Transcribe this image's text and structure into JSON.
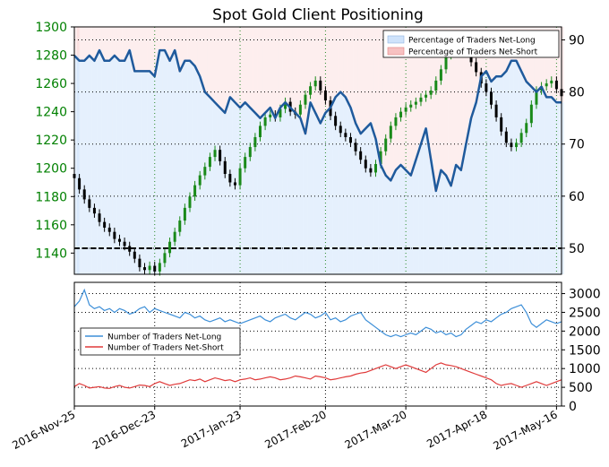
{
  "chart_data": {
    "type": "line",
    "title": "Spot Gold Client Positioning",
    "x_labels": [
      "2016-Nov-25",
      "2016-Dec-23",
      "2017-Jan-23",
      "2017-Feb-20",
      "2017-Mar-20",
      "2017-Apr-18",
      "2017-May-16"
    ],
    "top_panel": {
      "price_axis": {
        "ylim": [
          1125,
          1300
        ],
        "ticks": [
          1140,
          1160,
          1180,
          1200,
          1220,
          1240,
          1260,
          1280,
          1300
        ]
      },
      "percent_axis": {
        "ylim": [
          45,
          92.5
        ],
        "ticks": [
          50,
          60,
          70,
          80,
          90
        ]
      },
      "grid": true,
      "reference_line": 50,
      "legend": {
        "position": "top-right",
        "entries": [
          {
            "label": "Percentage of Traders Net-Long",
            "color": "#cfe3fb"
          },
          {
            "label": "Percentage of Traders Net-Short",
            "color": "#f7c1c1"
          }
        ]
      },
      "price_series": [
        1193,
        1185,
        1178,
        1172,
        1168,
        1162,
        1158,
        1155,
        1150,
        1148,
        1145,
        1141,
        1136,
        1130,
        1128,
        1131,
        1127,
        1133,
        1140,
        1148,
        1155,
        1163,
        1172,
        1180,
        1188,
        1195,
        1201,
        1208,
        1213,
        1205,
        1196,
        1190,
        1188,
        1200,
        1208,
        1215,
        1222,
        1230,
        1236,
        1238,
        1236,
        1242,
        1247,
        1240,
        1238,
        1245,
        1252,
        1258,
        1262,
        1255,
        1248,
        1237,
        1230,
        1225,
        1222,
        1218,
        1212,
        1206,
        1200,
        1197,
        1203,
        1212,
        1221,
        1230,
        1236,
        1240,
        1243,
        1245,
        1247,
        1250,
        1252,
        1255,
        1262,
        1270,
        1280,
        1286,
        1290,
        1287,
        1282,
        1275,
        1268,
        1260,
        1254,
        1245,
        1236,
        1226,
        1218,
        1215,
        1218,
        1225,
        1232,
        1245,
        1255,
        1258,
        1260,
        1262,
        1256,
        1251
      ],
      "percent_long_series": [
        87,
        86,
        86,
        87,
        86,
        88,
        86,
        86,
        87,
        86,
        86,
        88,
        84,
        84,
        84,
        84,
        83,
        88,
        88,
        86,
        88,
        84,
        86,
        86,
        85,
        83,
        80,
        79,
        78,
        77,
        76,
        79,
        78,
        77,
        78,
        77,
        76,
        75,
        76,
        77,
        75,
        77,
        78,
        77,
        76,
        75,
        72,
        78,
        76,
        74,
        76,
        77,
        79,
        80,
        79,
        77,
        74,
        72,
        73,
        74,
        71,
        66,
        64,
        63,
        65,
        66,
        65,
        64,
        67,
        70,
        73,
        67,
        61,
        65,
        64,
        62,
        66,
        65,
        70,
        75,
        78,
        83,
        84,
        82,
        83,
        83,
        84,
        86,
        86,
        84,
        82,
        81,
        80,
        81,
        79,
        79,
        78,
        78
      ]
    },
    "bottom_panel": {
      "ylim": [
        0,
        3300
      ],
      "ticks": [
        0,
        500,
        1000,
        1500,
        2000,
        2500,
        3000
      ],
      "grid": true,
      "legend": {
        "position": "left",
        "entries": [
          {
            "label": "Number of Traders Net-Long",
            "color": "#3d8fd8"
          },
          {
            "label": "Number of Traders Net-Short",
            "color": "#e03a3a"
          }
        ]
      },
      "net_long_series": [
        2650,
        2800,
        3100,
        2700,
        2600,
        2650,
        2550,
        2600,
        2500,
        2600,
        2550,
        2450,
        2500,
        2600,
        2650,
        2500,
        2600,
        2550,
        2500,
        2450,
        2400,
        2350,
        2500,
        2450,
        2350,
        2400,
        2300,
        2250,
        2300,
        2350,
        2250,
        2300,
        2250,
        2200,
        2250,
        2300,
        2350,
        2400,
        2300,
        2250,
        2350,
        2400,
        2450,
        2350,
        2300,
        2400,
        2500,
        2450,
        2350,
        2400,
        2500,
        2300,
        2350,
        2250,
        2300,
        2400,
        2450,
        2500,
        2300,
        2200,
        2100,
        2000,
        1900,
        1850,
        1900,
        1850,
        1900,
        1950,
        1900,
        2000,
        2100,
        2050,
        1950,
        2000,
        1900,
        1950,
        1850,
        1900,
        2050,
        2150,
        2250,
        2200,
        2300,
        2250,
        2350,
        2450,
        2500,
        2600,
        2650,
        2700,
        2500,
        2200,
        2100,
        2200,
        2300,
        2250,
        2200,
        2250
      ],
      "net_short_series": [
        520,
        600,
        550,
        480,
        500,
        520,
        480,
        470,
        520,
        550,
        500,
        480,
        520,
        560,
        550,
        520,
        600,
        650,
        600,
        550,
        580,
        600,
        650,
        700,
        680,
        720,
        650,
        700,
        750,
        720,
        680,
        700,
        650,
        700,
        720,
        750,
        700,
        720,
        750,
        780,
        750,
        700,
        720,
        750,
        800,
        780,
        750,
        720,
        800,
        780,
        750,
        700,
        720,
        750,
        780,
        800,
        850,
        880,
        900,
        950,
        1000,
        1050,
        1100,
        1050,
        1000,
        1050,
        1100,
        1050,
        1000,
        950,
        900,
        1000,
        1100,
        1150,
        1100,
        1080,
        1050,
        1000,
        950,
        900,
        850,
        800,
        750,
        700,
        600,
        550,
        580,
        600,
        550,
        500,
        550,
        600,
        650,
        600,
        550,
        600,
        650,
        700
      ]
    }
  }
}
